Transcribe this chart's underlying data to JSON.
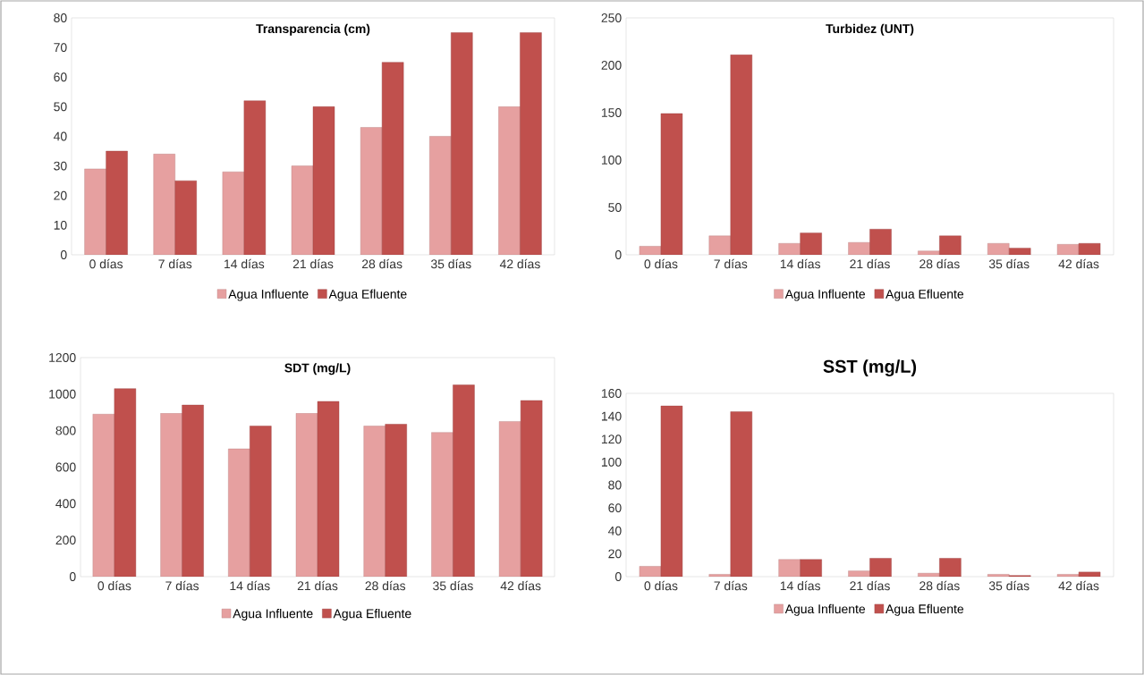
{
  "chart_data": [
    {
      "type": "bar",
      "title": "Transparencia (cm)",
      "categories": [
        "0 días",
        "7 días",
        "14 días",
        "21 días",
        "28 días",
        "35 días",
        "42 días"
      ],
      "series": [
        {
          "name": "Agua Influente",
          "color": "#e6a0a0",
          "values": [
            29,
            34,
            28,
            30,
            43,
            40,
            50
          ]
        },
        {
          "name": "Agua Efluente",
          "color": "#c0504d",
          "values": [
            35,
            25,
            52,
            50,
            65,
            75,
            75
          ]
        }
      ],
      "ylim": [
        0,
        80
      ],
      "yticks": [
        0,
        10,
        20,
        30,
        40,
        50,
        60,
        70,
        80
      ],
      "legend": "bottom"
    },
    {
      "type": "bar",
      "title": "Turbidez (UNT)",
      "categories": [
        "0 días",
        "7 días",
        "14 días",
        "21 días",
        "28 días",
        "35 días",
        "42 días"
      ],
      "series": [
        {
          "name": "Agua Influente",
          "color": "#e6a0a0",
          "values": [
            9,
            20,
            12,
            13,
            4,
            12,
            11
          ]
        },
        {
          "name": "Agua Efluente",
          "color": "#c0504d",
          "values": [
            149,
            211,
            23,
            27,
            20,
            7,
            12
          ]
        }
      ],
      "ylim": [
        0,
        250
      ],
      "yticks": [
        0,
        50,
        100,
        150,
        200,
        250
      ],
      "legend": "bottom"
    },
    {
      "type": "bar",
      "title": "SDT (mg/L)",
      "categories": [
        "0 días",
        "7 días",
        "14 días",
        "21 días",
        "28 días",
        "35 días",
        "42 días"
      ],
      "series": [
        {
          "name": "Agua Influente",
          "color": "#e6a0a0",
          "values": [
            890,
            895,
            700,
            895,
            825,
            790,
            850
          ]
        },
        {
          "name": "Agua Efluente",
          "color": "#c0504d",
          "values": [
            1030,
            940,
            825,
            960,
            835,
            1050,
            965
          ]
        }
      ],
      "ylim": [
        0,
        1200
      ],
      "yticks": [
        0,
        200,
        400,
        600,
        800,
        1000,
        1200
      ],
      "legend": "bottom"
    },
    {
      "type": "bar",
      "title": "SST (mg/L)",
      "categories": [
        "0 días",
        "7 días",
        "14 días",
        "21 días",
        "28 días",
        "35 días",
        "42 días"
      ],
      "series": [
        {
          "name": "Agua Influente",
          "color": "#e6a0a0",
          "values": [
            9,
            2,
            15,
            5,
            3,
            2,
            2
          ]
        },
        {
          "name": "Agua Efluente",
          "color": "#c0504d",
          "values": [
            149,
            144,
            15,
            16,
            16,
            1,
            4
          ]
        }
      ],
      "ylim": [
        0,
        160
      ],
      "yticks": [
        0,
        20,
        40,
        60,
        80,
        100,
        120,
        140,
        160
      ],
      "legend": "bottom"
    }
  ]
}
